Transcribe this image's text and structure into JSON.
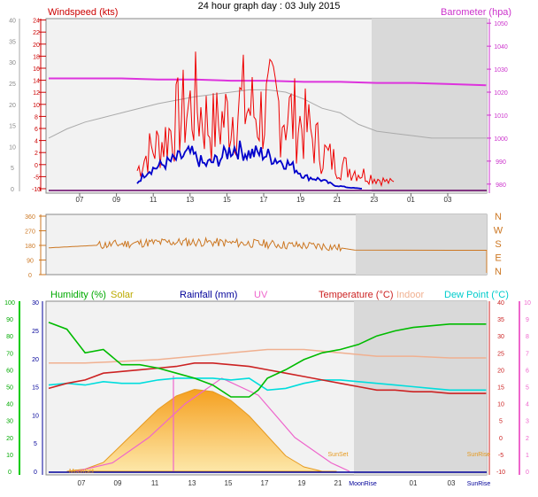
{
  "title": "24 hour graph day : 03 July 2015",
  "colors": {
    "wind_axis": "#cc0000",
    "gust": "#ee0000",
    "wind": "#0000cc",
    "baro": "#dd33dd",
    "baro_hist": "#aaaaaa",
    "dir": "#cc7722",
    "humidity": "#00bb00",
    "solar": "#ccaa00",
    "rain": "#000099",
    "uv": "#ee66cc",
    "temp": "#cc2222",
    "indoor": "#f0b090",
    "dew": "#00dddd"
  },
  "chart_data": [
    {
      "type": "line",
      "panel": "wind_baro",
      "x_ticks": [
        "07",
        "09",
        "11",
        "13",
        "15",
        "17",
        "19",
        "21",
        "23",
        "01",
        "03"
      ],
      "left_axis": {
        "label": "Windspeed (kts)",
        "outer_ticks": [
          0,
          5,
          10,
          15,
          20,
          25,
          30,
          35,
          40
        ],
        "inner_ticks": [
          -10,
          -5,
          0,
          2,
          4,
          6,
          8,
          10,
          12,
          14,
          16,
          18,
          20,
          22,
          24
        ]
      },
      "right_axis": {
        "label": "Barometer (hpa)",
        "ticks": [
          980,
          990,
          1000,
          1010,
          1020,
          1030,
          1040,
          1050
        ],
        "range": [
          978,
          1052
        ]
      },
      "series": [
        {
          "name": "Barometer (hpa)",
          "hours": [
            0,
            2,
            4,
            6,
            8,
            10,
            12,
            14,
            16,
            18,
            20,
            22,
            24
          ],
          "values": [
            1026,
            1026,
            1026,
            1025.5,
            1025.5,
            1025,
            1025,
            1024.5,
            1024.5,
            1024,
            1024,
            1023.5,
            1023
          ]
        },
        {
          "name": "Barometer history",
          "hours": [
            0,
            1,
            2,
            3,
            4,
            6,
            8,
            10,
            11,
            12,
            13,
            14,
            15,
            16,
            17,
            18,
            19,
            20,
            21,
            22,
            23,
            24
          ],
          "values": [
            1000,
            1004,
            1007,
            1009,
            1011,
            1015,
            1018,
            1020,
            1021,
            1021,
            1020,
            1017,
            1013,
            1011,
            1006,
            1003,
            1002,
            1001,
            1000,
            1000,
            1000,
            1000
          ]
        },
        {
          "name": "Wind gust (kts)",
          "hours": [
            5.3,
            6,
            7,
            8,
            9,
            10,
            11,
            12,
            13,
            14,
            15,
            16,
            17,
            18,
            19,
            20,
            21,
            21.5
          ],
          "values": [
            1.5,
            3,
            4,
            6,
            7,
            5,
            6,
            7,
            6,
            7,
            6,
            5,
            3,
            2,
            1.5,
            1,
            0.6,
            0.5
          ]
        },
        {
          "name": "Wind speed (kts)",
          "hours": [
            5.3,
            6,
            7,
            8,
            9,
            10,
            11,
            12,
            13,
            14,
            15,
            16,
            17,
            18,
            19,
            20,
            21
          ],
          "values": [
            0.5,
            1.5,
            2,
            2.5,
            3,
            2,
            2.5,
            3.5,
            3,
            3,
            2.5,
            2,
            1,
            0.8,
            0.3,
            0.1,
            0
          ]
        }
      ]
    },
    {
      "type": "line",
      "panel": "direction",
      "axis_ticks": [
        0,
        90,
        180,
        270,
        360
      ],
      "compass": [
        "N",
        "W",
        "S",
        "E",
        "N"
      ],
      "series": [
        {
          "name": "Wind direction",
          "hours": [
            0,
            1,
            2,
            4,
            6,
            8,
            10,
            12,
            14,
            16,
            18,
            19,
            20,
            23.4
          ],
          "values": [
            165,
            170,
            175,
            185,
            195,
            200,
            200,
            195,
            190,
            180,
            175,
            165,
            150,
            150
          ]
        }
      ]
    },
    {
      "type": "area",
      "panel": "temp_humidity",
      "x_ticks": [
        "07",
        "09",
        "11",
        "13",
        "15",
        "17",
        "19",
        "21",
        "01",
        "03"
      ],
      "annotations": [
        "SunSet",
        "MoonRise",
        "MoonSet",
        "SunRise",
        "Moon Set",
        "SunSet",
        "Moon Rise"
      ],
      "humidity_axis": {
        "label": "Humidity (%)",
        "ticks": [
          0,
          10,
          20,
          30,
          40,
          50,
          60,
          70,
          80,
          90,
          100
        ]
      },
      "rain_axis": {
        "label": "Rainfall (mm)",
        "ticks": [
          0,
          5,
          10,
          15,
          20,
          25,
          30
        ]
      },
      "temp_axis": {
        "label": "Temperature (°C)",
        "ticks": [
          -10,
          -5,
          0,
          5,
          10,
          15,
          20,
          25,
          30,
          35,
          40
        ]
      },
      "uv_axis": {
        "label": "UV",
        "ticks": [
          0,
          1,
          2,
          3,
          4,
          5,
          6,
          7,
          8,
          9,
          10
        ]
      },
      "series": [
        {
          "name": "Humidity (%)",
          "hours": [
            0,
            1,
            2,
            3,
            4,
            5,
            6,
            7,
            8,
            9,
            10,
            11,
            11.5,
            12,
            13,
            14,
            15,
            16,
            17,
            18,
            19,
            20,
            21,
            22,
            23,
            24
          ],
          "values": [
            88,
            84,
            70,
            72,
            63,
            63,
            61,
            58,
            55,
            51,
            44,
            44,
            48,
            55,
            60,
            66,
            70,
            72,
            75,
            80,
            83,
            85,
            86,
            87,
            87,
            87
          ]
        },
        {
          "name": "Solar",
          "hours": [
            0,
            1,
            2,
            3,
            4,
            5,
            6,
            7,
            8,
            9,
            10,
            11,
            12,
            13,
            14
          ],
          "values": [
            0,
            10,
            40,
            120,
            200,
            280,
            340,
            370,
            360,
            320,
            250,
            160,
            70,
            20,
            0
          ]
        },
        {
          "name": "Rainfall (mm)",
          "hours": [
            0,
            24
          ],
          "values": [
            0,
            0
          ]
        },
        {
          "name": "UV",
          "hours": [
            0,
            2,
            4,
            6,
            8,
            10,
            12,
            14,
            15
          ],
          "values": [
            0,
            0.5,
            2,
            4,
            5.5,
            4.5,
            2,
            0.5,
            0
          ]
        },
        {
          "name": "Temperature (°C)",
          "hours": [
            0,
            1,
            2,
            3,
            4,
            5,
            6,
            7,
            8,
            9,
            10,
            11,
            12,
            13,
            14,
            15,
            16,
            17,
            18,
            19,
            20,
            21,
            22,
            23,
            24
          ],
          "values": [
            14.5,
            16,
            17,
            19,
            19.5,
            20,
            20.5,
            21,
            22,
            22,
            21.5,
            21,
            20,
            19,
            18,
            17,
            16,
            15,
            14,
            14,
            13.5,
            13.5,
            13,
            13,
            13
          ]
        },
        {
          "name": "Indoor",
          "hours": [
            0,
            2,
            4,
            6,
            8,
            10,
            12,
            14,
            16,
            18,
            20,
            22,
            24
          ],
          "values": [
            22,
            22,
            22.5,
            23,
            24,
            25,
            26,
            26,
            25,
            24,
            24,
            23.5,
            23.5
          ]
        },
        {
          "name": "Dew Point (°C)",
          "hours": [
            0,
            1,
            2,
            3,
            4,
            5,
            6,
            7,
            8,
            9,
            10,
            11,
            12,
            13,
            14,
            15,
            16,
            17,
            18,
            19,
            20,
            21,
            22,
            23,
            24
          ],
          "values": [
            15.5,
            16,
            15.5,
            16.5,
            16,
            16,
            17,
            17.5,
            17.5,
            17.5,
            17,
            17.5,
            14,
            14.5,
            16,
            17,
            17,
            16.5,
            16,
            15.5,
            15,
            14.5,
            14,
            14,
            14
          ]
        }
      ]
    }
  ]
}
